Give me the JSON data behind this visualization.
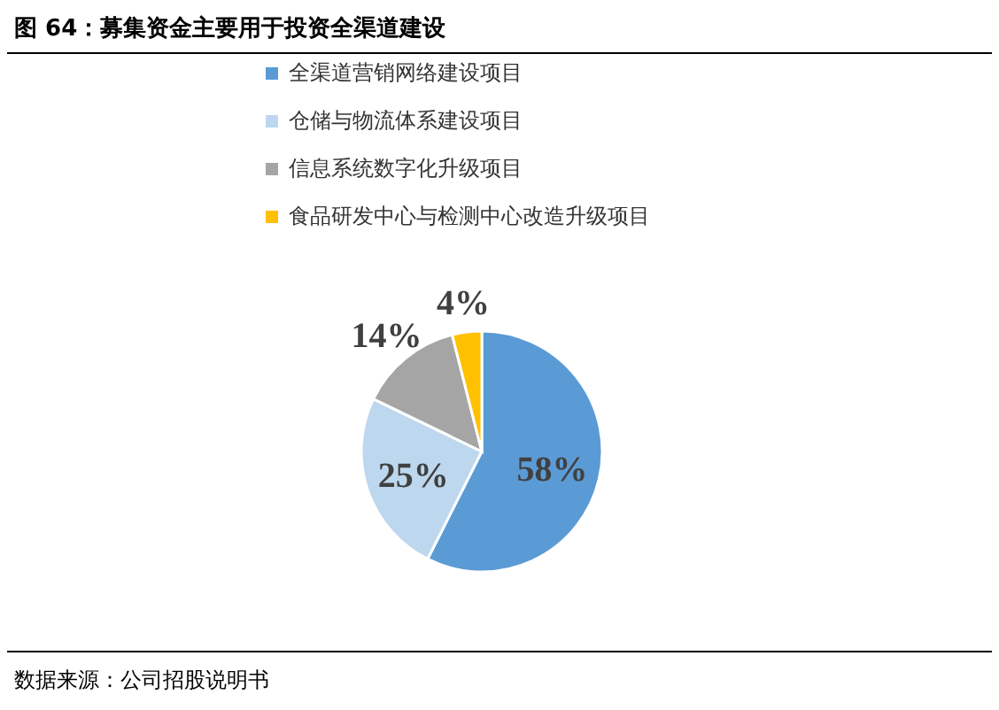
{
  "chart_data": {
    "type": "pie",
    "title": "图 64：募集资金主要用于投资全渠道建设",
    "categories": [
      "全渠道营销网络建设项目",
      "仓储与物流体系建设项目",
      "信息系统数字化升级项目",
      "食品研发中心与检测中心改造升级项目"
    ],
    "values": [
      58,
      25,
      14,
      4
    ],
    "colors": [
      "#5b9bd5",
      "#bdd7ee",
      "#a5a5a5",
      "#ffc000"
    ],
    "value_labels": [
      "58%",
      "25%",
      "14%",
      "4%"
    ],
    "legend": "top",
    "annotations": [
      "数据来源：公司招股说明书"
    ]
  }
}
